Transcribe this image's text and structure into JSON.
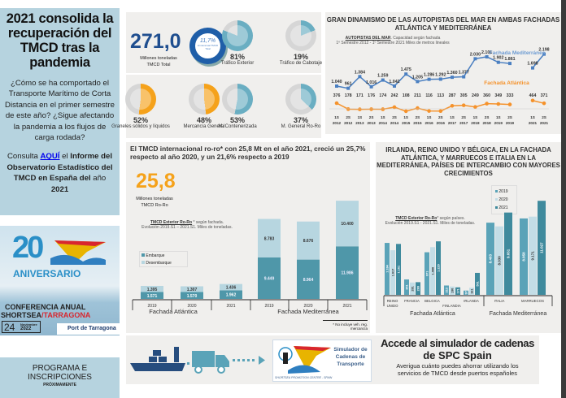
{
  "sidebar": {
    "title": "2021 consolida la recuperación del TMCD tras la pandemia",
    "question": "¿Cómo se ha comportado el Transporte Marítimo de Corta Distancia en el primer semestre de este año? ¿Sigue afectando la pandemia a los flujos de carga rodada?",
    "consulta_pre": "Consulta ",
    "link": "AQUÍ",
    "consulta_mid": " el ",
    "consulta_bold": "Informe del Observatorio Estadístico del TMCD en España del",
    "consulta_post": " año ",
    "year": "2021",
    "anniversary": {
      "number": "20",
      "label": "ANIVERSARIO",
      "conf1": "CONFERENCIA ANUAL",
      "conf2a": "SHORTSEA",
      "conf2b": "/TARRAGONA",
      "day": "24",
      "month": "Noviembre",
      "yr": "2022",
      "port": "Port de Tarragona"
    },
    "programa": {
      "line1": "PROGRAMA E",
      "line2": "INSCRIPCIONES",
      "line3": "PRÓXIMAMENTE"
    }
  },
  "stats": {
    "total": "271,0",
    "total_label1": "Millones toneladas",
    "total_label2": "TMCD Total",
    "ring_pct": "11,7%",
    "ring_label": "Δ interanual TMCD Total",
    "ring_value": 11.7,
    "pies": [
      {
        "pct": "81%",
        "label": "Tráfico Exterior",
        "value": 81,
        "color": "#6aaec2"
      },
      {
        "pct": "19%",
        "label": "Tráfico de Cabotaje",
        "value": 19,
        "color": "#6aaec2"
      },
      {
        "pct": "52%",
        "label": "Graneles sólidos y líquidos",
        "value": 52,
        "color": "#f5a21b"
      },
      {
        "pct": "48%",
        "label": "Mercancía General",
        "value": 48,
        "color": "#f5a21b"
      },
      {
        "pct": "53%",
        "label": "M. Contenerizada",
        "value": 53,
        "color": "#6aaec2"
      },
      {
        "pct": "37%",
        "label": "M. General Ro-Ro",
        "value": 37,
        "color": "#6aaec2"
      }
    ]
  },
  "chart_data": [
    {
      "type": "line",
      "title": "GRAN DINAMISMO DE LAS AUTOPISTAS DEL MAR EN AMBAS FACHADAS ATLÁNTICA Y MEDITERRÁNEA",
      "subtitle_u": "AUTOPISTAS DEL MAR",
      "subtitle": ". Capacidad según fachada",
      "subtitle2": "1º Semestre 2012 - 1º Semestre 2021 Miles de metros lineales",
      "x": [
        "1S 2012",
        "2S 2012",
        "1S 2013",
        "2S 2013",
        "1S 2014",
        "2S 2014",
        "1S 2015",
        "2S 2015",
        "1S 2016",
        "2S 2016",
        "1S 2017",
        "2S 2017",
        "1S 2018",
        "2S 2018",
        "1S 2019",
        "2S 2019",
        "1S 2021",
        "2S 2021"
      ],
      "series": [
        {
          "name": "Fachada Mediterránea",
          "color": "#4a7fc1",
          "values": [
            1040,
            961,
            1384,
            1016,
            1259,
            1042,
            1475,
            1205,
            1286,
            1292,
            1360,
            1377,
            2030,
            2101,
            1902,
            1861,
            1698,
            2198
          ],
          "labels": [
            "1.040",
            "961",
            "1.384",
            "1.016",
            "1.259",
            "1.042",
            "1.475",
            "1.205",
            "1.286",
            "1.292",
            "1.360",
            "1.377",
            "2.030",
            "2.101",
            "1.902",
            "1.861",
            "1.698",
            "2.198"
          ]
        },
        {
          "name": "Fachada Atlántica",
          "color": "#f5922b",
          "values": [
            376,
            178,
            171,
            176,
            174,
            242,
            108,
            211,
            116,
            113,
            287,
            305,
            249,
            360,
            349,
            333,
            464,
            371
          ],
          "labels": [
            "376",
            "178",
            "171",
            "176",
            "174",
            "242",
            "108",
            "211",
            "116",
            "113",
            "287",
            "305",
            "249",
            "360",
            "349",
            "333",
            "464",
            "371"
          ]
        }
      ]
    },
    {
      "type": "bar",
      "title": "El TMCD internacional ro-ro* con 25,8 Mt en el año 2021, creció un 25,7% respecto al año 2020, y un 21,6% respecto a 2019",
      "big": "25,8",
      "big_l1": "Millones toneladas",
      "big_l2": "TMCD Ro-Ro",
      "note_u": "TMCD Exterior Ro-Ro",
      "note": " * según fachada.",
      "note2": "Evolución 2019.S1 – 2021.S1. Miles de toneladas.",
      "footnote": "* No incluye veh. reg. mercancía",
      "groups": [
        "Fachada Atlántica",
        "Fachada Mediterránea"
      ],
      "categories": [
        "2019",
        "2020",
        "2021",
        "2019",
        "2020",
        "2021"
      ],
      "series": [
        {
          "name": "Embarque",
          "color": "#4f97a9",
          "values": [
            1571,
            1570,
            1962,
            9449,
            8964,
            11986
          ],
          "labels": [
            "1.571",
            "1.570",
            "1.962",
            "9.449",
            "8.964",
            "11.986"
          ]
        },
        {
          "name": "Desembarque",
          "color": "#b7d6e0",
          "values": [
            1395,
            1307,
            1436,
            8783,
            8676,
            10400
          ],
          "labels": [
            "1.395",
            "1.307",
            "1.436",
            "8.783",
            "8.676",
            "10.400"
          ]
        }
      ]
    },
    {
      "type": "bar",
      "title": "IRLANDA, REINO UNIDO Y BÉLGICA, EN LA FACHADA ATLÁNTICA, Y MARRUECOS E ITALIA EN LA MEDITERRÁNEA, PAÍSES DE INTERCAMBIO CON MAYORES CRECIMIENTOS",
      "note_u": "TMCD Exterior Ro-Ro",
      "note": "* según países.",
      "note2": "Evolución 2019.S1 - 2021.S1. Miles de toneladas.",
      "groups": [
        "Fachada Atlántica",
        "Fachada Mediterránea"
      ],
      "categories": [
        "REINO UNIDO",
        "FRANCIA",
        "BELGICA",
        "FINLANDIA",
        "IRLANDA",
        "ITALIA",
        "MARRUECOS"
      ],
      "series": [
        {
          "name": "2019",
          "color": "#5aa3b8",
          "values": [
            1184,
            351,
            971,
            213,
            97,
            8463,
            8958
          ],
          "labels": [
            "1.184",
            "351",
            "971",
            "213",
            "97",
            "8.463",
            "8.958"
          ]
        },
        {
          "name": "2020",
          "color": "#c3dde6",
          "values": [
            1017,
            281,
            1088,
            190,
            161,
            8030,
            9171
          ],
          "labels": [
            "1.017",
            "281",
            "1.088",
            "190",
            "161",
            "8.030",
            "9.171"
          ]
        },
        {
          "name": "2021",
          "color": "#3f8a9d",
          "values": [
            1161,
            289,
            1220,
            171,
            501,
            9651,
            11027
          ],
          "labels": [
            "1.161",
            "289",
            "1.220",
            "171",
            "501",
            "9.651",
            "11.027"
          ]
        }
      ]
    }
  ],
  "banner": {
    "sim1": "Simulador de",
    "sim2": "Cadenas de",
    "sim3": "Transporte",
    "sim_foot": "SHORTSEA PROMOTION CENTRE - SPAIN",
    "title1": "Accede al simulador de cadenas",
    "title2": "de SPC Spain",
    "desc1": "Averigua cuánto puedes ahorrar utilizando los",
    "desc2": "servicios de TMCD desde puertos españoles"
  }
}
